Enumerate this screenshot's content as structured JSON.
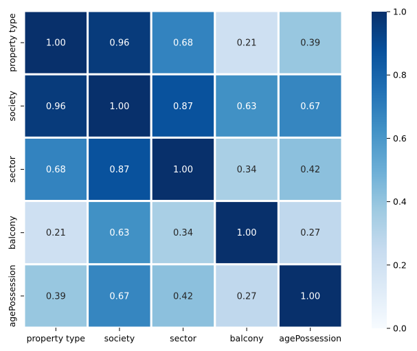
{
  "chart_data": {
    "type": "heatmap",
    "title": "",
    "xlabel": "",
    "ylabel": "",
    "rows": [
      "property type",
      "society",
      "sector",
      "balcony",
      "agePossession"
    ],
    "cols": [
      "property type",
      "society",
      "sector",
      "balcony",
      "agePossession"
    ],
    "values": [
      [
        1.0,
        0.96,
        0.68,
        0.21,
        0.39
      ],
      [
        0.96,
        1.0,
        0.87,
        0.63,
        0.67
      ],
      [
        0.68,
        0.87,
        1.0,
        0.34,
        0.42
      ],
      [
        0.21,
        0.63,
        0.34,
        1.0,
        0.27
      ],
      [
        0.39,
        0.67,
        0.42,
        0.27,
        1.0
      ]
    ],
    "annotation_format": "0.00",
    "colormap": "Blues",
    "colormap_stops": [
      "#f7fbff",
      "#deebf7",
      "#c6dbef",
      "#9ecae1",
      "#6baed6",
      "#4292c6",
      "#2171b5",
      "#08519c",
      "#08306b"
    ],
    "vmin": 0.0,
    "vmax": 1.0,
    "cell_border_color": "#ffffff",
    "colorbar": {
      "ticks": [
        "0.0",
        "0.2",
        "0.4",
        "0.6",
        "0.8",
        "1.0"
      ],
      "tick_values": [
        0.0,
        0.2,
        0.4,
        0.6,
        0.8,
        1.0
      ]
    }
  }
}
